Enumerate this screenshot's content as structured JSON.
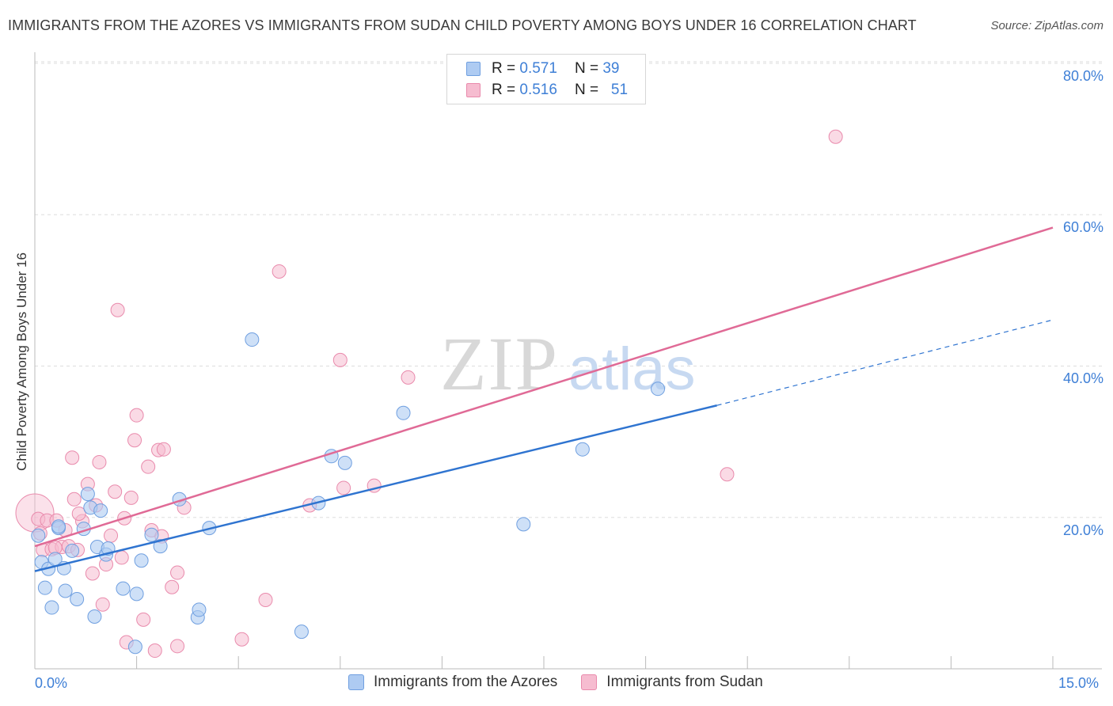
{
  "title": "IMMIGRANTS FROM THE AZORES VS IMMIGRANTS FROM SUDAN CHILD POVERTY AMONG BOYS UNDER 16 CORRELATION CHART",
  "source": "Source: ZipAtlas.com",
  "watermark": {
    "zip": "ZIP",
    "atlas": "atlas"
  },
  "colors": {
    "azores_fill": "#aecbf2",
    "azores_stroke": "#6f9fe0",
    "azores_line": "#2f74d0",
    "sudan_fill": "#f6bcd0",
    "sudan_stroke": "#e98aac",
    "sudan_line": "#e06a96",
    "accent_text": "#3e7fd6",
    "grid": "#dddddd"
  },
  "legend": {
    "rows": [
      {
        "r_label": "R =",
        "r_value": "0.571",
        "n_label": "N =",
        "n_value": "39"
      },
      {
        "r_label": "R =",
        "r_value": "0.516",
        "n_label": "N =",
        "n_value": "51"
      }
    ]
  },
  "bottom_legend": [
    "Immigrants from the Azores",
    "Immigrants from Sudan"
  ],
  "chart_data": {
    "type": "scatter",
    "title": "IMMIGRANTS FROM THE AZORES VS IMMIGRANTS FROM SUDAN CHILD POVERTY AMONG BOYS UNDER 16 CORRELATION CHART",
    "xlabel": "",
    "ylabel": "Child Poverty Among Boys Under 16",
    "xlim": [
      0,
      15
    ],
    "ylim": [
      0,
      80
    ],
    "x_tick_labels": [
      "0.0%",
      "15.0%"
    ],
    "y_ticks": [
      20,
      40,
      60,
      80
    ],
    "y_tick_labels": [
      "20.0%",
      "40.0%",
      "60.0%",
      "80.0%"
    ],
    "grid": true,
    "legend_position": "top-center",
    "series": [
      {
        "name": "Immigrants from the Azores",
        "r": 0.571,
        "n": 39,
        "trend": {
          "x_start": 0.0,
          "y_start": 12.9,
          "x_solid_end": 10.05,
          "y_solid_end": 34.8,
          "x_end": 15.0,
          "y_end": 46.1
        },
        "points": [
          [
            0.05,
            17.6
          ],
          [
            0.1,
            14.1
          ],
          [
            0.15,
            10.7
          ],
          [
            0.2,
            13.2
          ],
          [
            0.25,
            8.1
          ],
          [
            0.3,
            14.5
          ],
          [
            0.35,
            18.6
          ],
          [
            0.43,
            13.3
          ],
          [
            0.45,
            10.3
          ],
          [
            0.55,
            15.6
          ],
          [
            0.62,
            9.2
          ],
          [
            0.72,
            18.5
          ],
          [
            0.78,
            23.1
          ],
          [
            0.82,
            21.3
          ],
          [
            0.88,
            6.9
          ],
          [
            0.92,
            16.1
          ],
          [
            0.97,
            20.9
          ],
          [
            1.05,
            15.1
          ],
          [
            1.08,
            15.9
          ],
          [
            1.3,
            10.6
          ],
          [
            1.48,
            2.9
          ],
          [
            1.5,
            9.9
          ],
          [
            1.57,
            14.3
          ],
          [
            1.72,
            17.7
          ],
          [
            1.85,
            16.2
          ],
          [
            2.13,
            22.4
          ],
          [
            2.4,
            6.8
          ],
          [
            2.42,
            7.8
          ],
          [
            2.57,
            18.6
          ],
          [
            3.2,
            43.5
          ],
          [
            3.93,
            4.9
          ],
          [
            4.18,
            21.9
          ],
          [
            4.37,
            28.1
          ],
          [
            4.57,
            27.2
          ],
          [
            5.43,
            33.8
          ],
          [
            7.2,
            19.1
          ],
          [
            8.07,
            29.0
          ],
          [
            9.18,
            37.0
          ],
          [
            0.35,
            18.8
          ]
        ]
      },
      {
        "name": "Immigrants from Sudan",
        "r": 0.516,
        "n": 51,
        "trend": {
          "x_start": 0.0,
          "y_start": 16.2,
          "x_end": 15.0,
          "y_end": 58.3
        },
        "points": [
          [
            0.05,
            19.8
          ],
          [
            0.08,
            17.9
          ],
          [
            0.12,
            15.7
          ],
          [
            0.18,
            19.6
          ],
          [
            0.25,
            15.8
          ],
          [
            0.32,
            19.6
          ],
          [
            0.4,
            16.1
          ],
          [
            0.45,
            18.3
          ],
          [
            0.5,
            16.2
          ],
          [
            0.55,
            27.9
          ],
          [
            0.58,
            22.4
          ],
          [
            0.63,
            15.7
          ],
          [
            0.7,
            19.5
          ],
          [
            0.78,
            24.4
          ],
          [
            0.85,
            12.6
          ],
          [
            0.9,
            21.6
          ],
          [
            0.95,
            27.3
          ],
          [
            1.0,
            8.5
          ],
          [
            1.05,
            13.8
          ],
          [
            1.12,
            17.6
          ],
          [
            1.18,
            23.4
          ],
          [
            1.22,
            47.4
          ],
          [
            1.28,
            14.7
          ],
          [
            1.32,
            19.9
          ],
          [
            1.35,
            3.5
          ],
          [
            1.42,
            22.6
          ],
          [
            1.47,
            30.2
          ],
          [
            1.5,
            33.5
          ],
          [
            1.6,
            6.5
          ],
          [
            1.67,
            26.7
          ],
          [
            1.72,
            18.3
          ],
          [
            1.77,
            2.4
          ],
          [
            1.82,
            28.9
          ],
          [
            1.87,
            17.5
          ],
          [
            1.9,
            29.0
          ],
          [
            2.02,
            10.8
          ],
          [
            2.1,
            3.0
          ],
          [
            2.1,
            12.7
          ],
          [
            2.2,
            21.3
          ],
          [
            3.05,
            3.9
          ],
          [
            3.4,
            9.1
          ],
          [
            3.6,
            52.5
          ],
          [
            4.05,
            21.6
          ],
          [
            4.5,
            40.8
          ],
          [
            4.55,
            23.9
          ],
          [
            5.0,
            24.2
          ],
          [
            5.5,
            38.5
          ],
          [
            10.2,
            25.7
          ],
          [
            11.8,
            70.3
          ],
          [
            0.3,
            16.0
          ],
          [
            0.65,
            20.5
          ]
        ],
        "large_points": [
          [
            0.0,
            20.6
          ]
        ]
      }
    ]
  }
}
